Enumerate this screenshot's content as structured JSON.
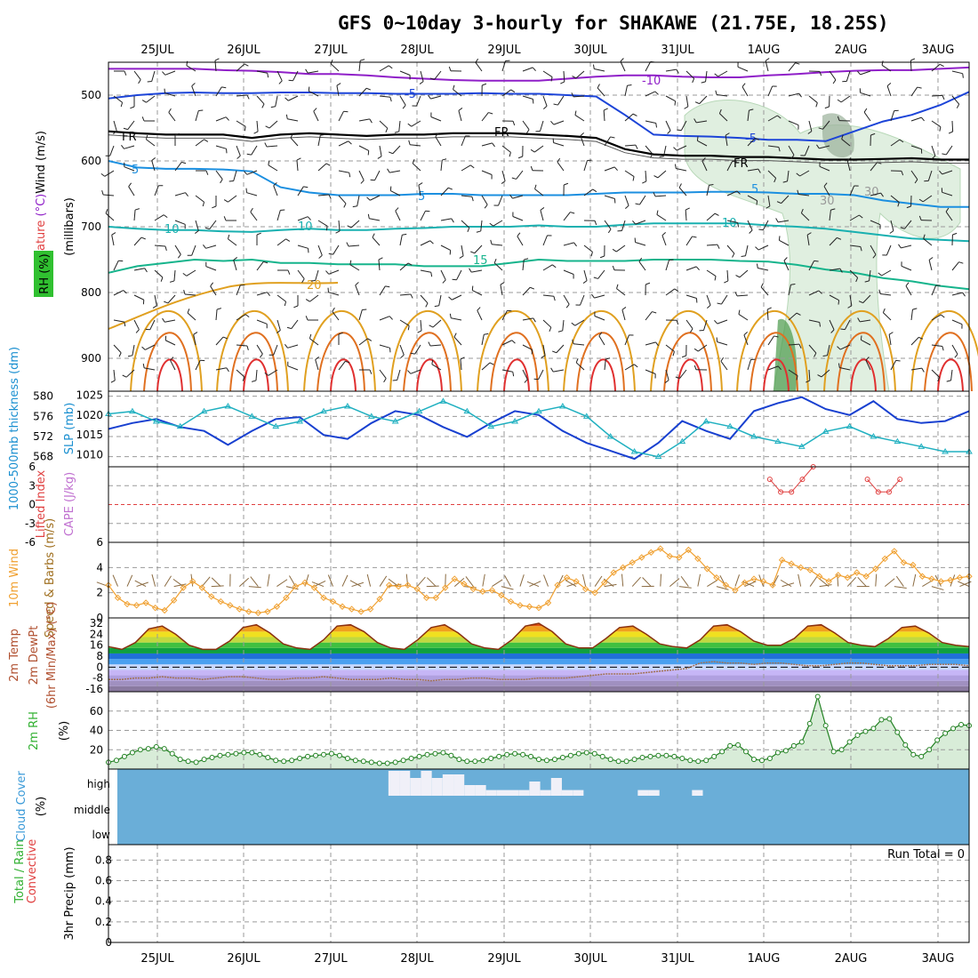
{
  "title": "GFS 0~10day 3-hourly for SHAKAWE (21.75E, 18.25S)",
  "dates": [
    "25JUL",
    "26JUL",
    "27JUL",
    "28JUL",
    "29JUL",
    "30JUL",
    "31JUL",
    "1AUG",
    "2AUG",
    "3AUG"
  ],
  "colors": {
    "temp_neg10": "#8f1fc8",
    "temp_neg5": "#1c44d8",
    "temp_5": "#1b8fe0",
    "temp_10": "#19b0b0",
    "temp_15": "#16b48c",
    "temp_20": "#e0a020",
    "temp_25": "#e07020",
    "temp_30": "#e03030",
    "freezing": "#000000",
    "rh": "#cfe7cf",
    "slp": "#1840d0",
    "thickness": "#20b0c0",
    "wind10": "#f0a030",
    "barb10": "#8a6a40",
    "cloud": "#6aaed8",
    "rh2m": "#30b030"
  },
  "chart_data": [
    {
      "type": "line",
      "panel": "upper-air",
      "ylabel_parts": [
        "Wind",
        " (m/s)",
        "Temperature",
        " (°C)",
        "RH (%)",
        "(millibars)"
      ],
      "yticks": [
        500,
        600,
        700,
        800,
        900
      ],
      "ylim": [
        1000,
        450
      ],
      "contour_labels": [
        "-10",
        "-5",
        "-5",
        "FR",
        "FR",
        "FR",
        "5",
        "5",
        "5",
        "10",
        "10",
        "10",
        "15",
        "20",
        "30",
        "30"
      ],
      "isotherms": [
        {
          "name": "-10",
          "level": [
            460,
            460,
            460,
            460,
            462,
            463,
            465,
            468,
            468,
            470,
            473,
            475,
            477,
            478,
            478,
            478,
            475,
            472,
            470,
            470,
            472,
            473,
            473,
            470,
            468,
            465,
            463,
            462,
            462,
            460,
            458
          ]
        },
        {
          "name": "-5",
          "level": [
            505,
            500,
            497,
            496,
            497,
            497,
            496,
            496,
            497,
            497,
            498,
            498,
            498,
            497,
            498,
            498,
            500,
            502,
            530,
            560,
            562,
            563,
            565,
            568,
            568,
            570,
            555,
            540,
            530,
            515,
            495
          ]
        },
        {
          "name": "FR",
          "level": [
            555,
            558,
            560,
            560,
            560,
            565,
            560,
            558,
            560,
            562,
            560,
            560,
            558,
            558,
            558,
            560,
            562,
            565,
            582,
            590,
            592,
            592,
            594,
            594,
            596,
            598,
            598,
            597,
            596,
            598,
            598
          ]
        },
        {
          "name": "5",
          "level": [
            600,
            610,
            612,
            612,
            613,
            616,
            640,
            648,
            652,
            652,
            652,
            650,
            650,
            652,
            652,
            652,
            652,
            650,
            648,
            648,
            648,
            647,
            647,
            648,
            650,
            650,
            652,
            660,
            665,
            670,
            670
          ]
        },
        {
          "name": "10",
          "level": [
            700,
            703,
            705,
            705,
            707,
            708,
            705,
            703,
            705,
            705,
            703,
            702,
            700,
            700,
            700,
            698,
            700,
            700,
            697,
            695,
            695,
            695,
            695,
            698,
            700,
            703,
            708,
            713,
            718,
            720,
            722
          ]
        },
        {
          "name": "15",
          "level": [
            770,
            760,
            755,
            750,
            752,
            750,
            755,
            755,
            757,
            757,
            757,
            760,
            760,
            760,
            755,
            750,
            752,
            752,
            752,
            750,
            750,
            750,
            752,
            753,
            758,
            765,
            770,
            778,
            783,
            790,
            795
          ]
        }
      ],
      "freezing_level_mb": [
        555,
        560,
        560,
        560,
        562,
        564,
        560,
        560,
        561,
        562,
        560,
        560,
        558,
        558,
        558,
        560,
        562,
        565,
        582,
        590,
        592,
        593,
        594,
        594,
        596,
        598,
        598,
        597,
        596,
        598,
        598
      ]
    },
    {
      "type": "line",
      "panel": "thickness-slp",
      "ylabel_left": "1000-500mb thickness (dm)",
      "ylabel_right": "SLP (mb)",
      "yticks_left": [
        568,
        572,
        576,
        580
      ],
      "yticks_right": [
        1010,
        1015,
        1020,
        1025
      ],
      "series": [
        {
          "name": "SLP",
          "values": [
            1016.5,
            1018,
            1019,
            1017,
            1016,
            1012.5,
            1016,
            1019,
            1019.5,
            1015,
            1014,
            1018,
            1021,
            1020,
            1017,
            1014.5,
            1018,
            1021,
            1020,
            1016,
            1013,
            1011,
            1009,
            1013,
            1018.5,
            1016,
            1014,
            1021,
            1023,
            1024.5,
            1021.5,
            1020,
            1023.5,
            1019,
            1018,
            1018.5,
            1021
          ]
        },
        {
          "name": "thickness",
          "values": [
            576.5,
            577,
            575,
            574,
            577,
            578,
            576,
            574,
            575,
            577,
            578,
            576,
            575,
            577,
            579,
            577,
            574,
            575,
            577,
            578,
            576,
            572,
            569,
            568,
            571,
            575,
            574,
            572,
            571,
            570,
            573,
            574,
            572,
            571,
            570,
            569,
            569
          ]
        }
      ]
    },
    {
      "type": "line",
      "panel": "cape-li",
      "ylabel_left": "Lifted Index",
      "ylabel_right": "CAPE (J/kg)",
      "yticks": [
        6,
        3,
        0,
        -3,
        -6
      ],
      "ylim": [
        6,
        -6
      ],
      "series": [
        {
          "name": "Lifted Index",
          "x_steps": [
            61,
            62,
            63,
            64,
            65
          ],
          "values": [
            4,
            2,
            2,
            4,
            6
          ]
        },
        {
          "name": "Lifted Index",
          "x_steps": [
            70,
            71,
            72,
            73
          ],
          "values": [
            4,
            2,
            2,
            4
          ]
        }
      ]
    },
    {
      "type": "line",
      "panel": "wind10m",
      "ylabel_left": "10m Wind",
      "ylabel_right": "Speed & Barbs (m/s)",
      "yticks": [
        0,
        2,
        4,
        6
      ],
      "ylim": [
        0,
        6
      ],
      "series": [
        {
          "name": "10m wind speed",
          "values": [
            2.6,
            1.6,
            1.1,
            1.0,
            1.2,
            0.8,
            0.6,
            1.4,
            2.4,
            2.9,
            2.4,
            1.7,
            1.3,
            1.0,
            0.7,
            0.5,
            0.4,
            0.5,
            0.9,
            1.6,
            2.5,
            2.8,
            2.4,
            1.6,
            1.3,
            0.9,
            0.7,
            0.5,
            0.7,
            1.5,
            2.6,
            2.5,
            2.6,
            2.3,
            1.6,
            1.6,
            2.4,
            3.1,
            2.7,
            2.3,
            2.1,
            2.2,
            1.8,
            1.3,
            1.0,
            0.9,
            0.8,
            1.2,
            2.6,
            3.2,
            2.9,
            2.3,
            2.0,
            2.8,
            3.6,
            4.0,
            4.4,
            4.8,
            5.2,
            5.5,
            4.9,
            4.8,
            5.4,
            4.7,
            3.9,
            3.2,
            2.6,
            2.2,
            2.8,
            3.1,
            2.9,
            2.6,
            4.6,
            4.3,
            4.0,
            3.8,
            3.3,
            2.9,
            3.4,
            3.2,
            3.6,
            3.3,
            3.9,
            4.7,
            5.3,
            4.4,
            4.2,
            3.3,
            3.1,
            2.9,
            3.0,
            3.2,
            3.3
          ]
        }
      ]
    },
    {
      "type": "area",
      "panel": "temp2m",
      "ylabel_left": "2m Temp",
      "ylabel_right": "2m DewPt (6hr Min/Max) (°C)",
      "yticks": [
        32,
        24,
        16,
        8,
        0,
        -8,
        -16
      ],
      "tick_labels": [
        "32",
        "24",
        "16",
        "8",
        "0",
        "-8",
        "-16"
      ],
      "series": [
        {
          "name": "2m Temp",
          "values": [
            15,
            13,
            18,
            28,
            30,
            24,
            16,
            13,
            13,
            19,
            29,
            31,
            25,
            17,
            14,
            13,
            20,
            30,
            31,
            26,
            18,
            14,
            13,
            20,
            29,
            31,
            25,
            17,
            14,
            13,
            20,
            30,
            32,
            26,
            17,
            14,
            14,
            21,
            29,
            30,
            24,
            17,
            15,
            14,
            20,
            30,
            31,
            26,
            19,
            16,
            16,
            21,
            30,
            31,
            25,
            18,
            16,
            15,
            21,
            29,
            30,
            25,
            18,
            16,
            15
          ]
        },
        {
          "name": "2m DewPt",
          "values": [
            -9,
            -9,
            -8,
            -8,
            -7,
            -8,
            -8,
            -9,
            -8,
            -7,
            -7,
            -8,
            -9,
            -9,
            -8,
            -8,
            -7,
            -8,
            -9,
            -9,
            -9,
            -8,
            -9,
            -9,
            -10,
            -9,
            -9,
            -8,
            -8,
            -9,
            -9,
            -9,
            -8,
            -8,
            -8,
            -7,
            -6,
            -5,
            -5,
            -5,
            -4,
            -3,
            -2,
            -1,
            3,
            4,
            3,
            3,
            2,
            3,
            3,
            2,
            1,
            1,
            2,
            3,
            3,
            2,
            1,
            1,
            1,
            2,
            2,
            2,
            1
          ]
        }
      ]
    },
    {
      "type": "area",
      "panel": "rh2m",
      "ylabel_left": "2m RH",
      "ylabel_right": "(%)",
      "yticks": [
        20,
        40,
        60
      ],
      "ylim": [
        0,
        80
      ],
      "series": [
        {
          "name": "2m RH",
          "values": [
            7,
            9,
            13,
            17,
            20,
            21,
            23,
            21,
            16,
            10,
            8,
            7,
            10,
            12,
            14,
            15,
            16,
            17,
            17,
            15,
            12,
            9,
            8,
            9,
            11,
            13,
            14,
            15,
            16,
            14,
            11,
            9,
            8,
            7,
            6,
            6,
            7,
            9,
            11,
            13,
            15,
            16,
            17,
            14,
            10,
            8,
            8,
            9,
            11,
            13,
            15,
            16,
            15,
            13,
            10,
            9,
            10,
            12,
            14,
            16,
            17,
            16,
            13,
            10,
            8,
            8,
            10,
            12,
            13,
            14,
            14,
            13,
            11,
            9,
            8,
            9,
            13,
            18,
            24,
            25,
            18,
            10,
            9,
            11,
            17,
            19,
            24,
            28,
            47,
            75,
            45,
            18,
            20,
            28,
            35,
            39,
            42,
            51,
            52,
            38,
            25,
            15,
            13,
            20,
            30,
            37,
            42,
            46,
            45
          ]
        }
      ]
    },
    {
      "type": "bar",
      "panel": "cloud",
      "ylabel_left": "Cloud Cover",
      "ylabel_right": "(%)",
      "tick_labels": [
        "high",
        "middle",
        "low"
      ],
      "series": [
        {
          "name": "high cloud",
          "x_steps": [
            25,
            26,
            27,
            28,
            29,
            30,
            31,
            32,
            33,
            34,
            35,
            36,
            37,
            38,
            39,
            40,
            41,
            42,
            48,
            49,
            53
          ],
          "values": [
            35,
            35,
            25,
            35,
            25,
            30,
            30,
            15,
            15,
            8,
            8,
            8,
            8,
            20,
            8,
            25,
            8,
            8,
            8,
            8,
            8
          ]
        }
      ]
    },
    {
      "type": "bar",
      "panel": "precip",
      "ylabel_left": "Total / Rain",
      "ylabel_left2": "Convective",
      "ylabel_right": "3hr Precip (mm)",
      "yticks": [
        0,
        0.2,
        0.4,
        0.6,
        0.8
      ],
      "tick_labels": [
        "0",
        "0.2",
        "0.4",
        "0.6",
        "0.8"
      ],
      "ylim": [
        0,
        0.95
      ],
      "annotation": "Run Total = 0",
      "series": [
        {
          "name": "precip",
          "values": []
        }
      ]
    }
  ]
}
